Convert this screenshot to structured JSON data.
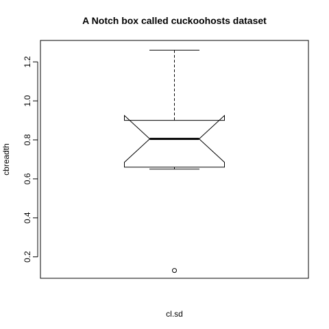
{
  "chart_data": {
    "type": "box",
    "title": "A Notch box called cuckoohosts dataset",
    "xlabel": "cl.sd",
    "ylabel": "cbreadth",
    "ylim": [
      0.09,
      1.31
    ],
    "y_ticks": [
      0.2,
      0.4,
      0.6,
      0.8,
      1.0,
      1.2
    ],
    "y_tick_labels": [
      "0.2",
      "0.4",
      "0.6",
      "0.8",
      "1.0",
      "1.2"
    ],
    "notched": true,
    "box": {
      "whisker_low": 0.65,
      "q1": 0.66,
      "median": 0.805,
      "q3": 0.9,
      "whisker_high": 1.26,
      "notch_low": 0.685,
      "notch_high": 0.925
    },
    "outliers": [
      0.13
    ],
    "grid": false
  }
}
